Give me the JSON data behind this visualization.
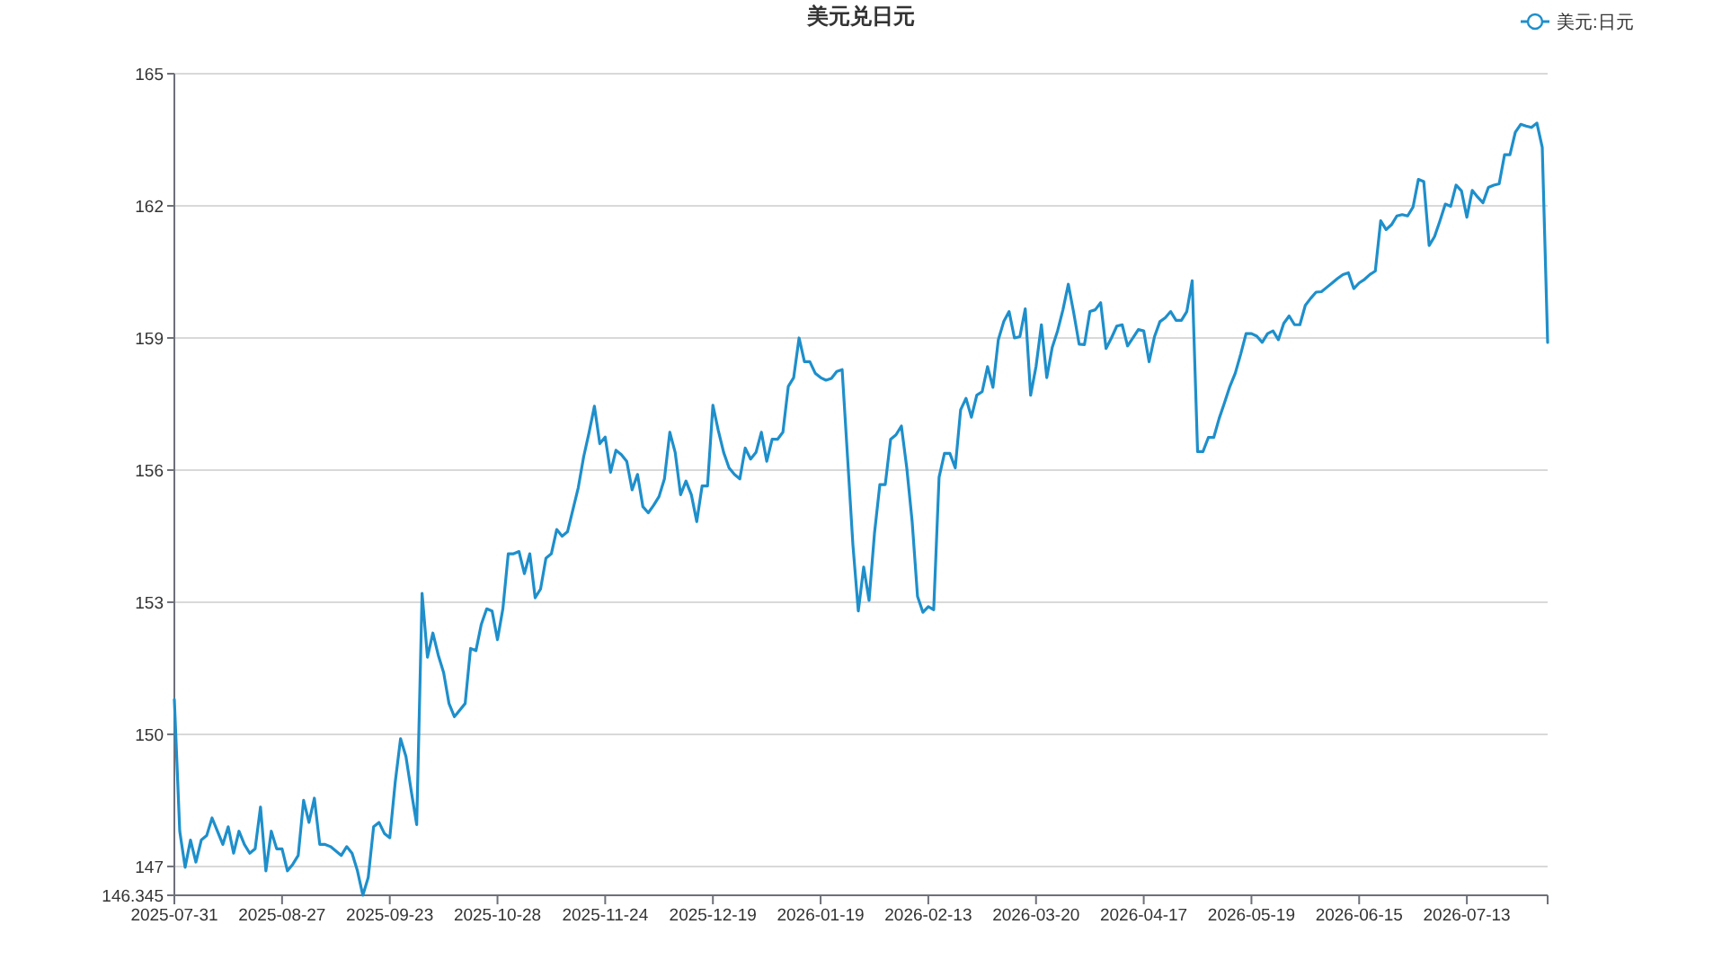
{
  "chart_data": {
    "type": "line",
    "title": "美元兑日元",
    "categories": [
      "2025-07-31",
      null,
      null,
      null,
      null,
      null,
      null,
      null,
      null,
      null,
      null,
      null,
      null,
      null,
      null,
      null,
      null,
      null,
      null,
      null,
      "2025-08-27",
      null,
      null,
      null,
      null,
      null,
      null,
      null,
      null,
      null,
      null,
      null,
      null,
      null,
      null,
      null,
      null,
      null,
      null,
      null,
      "2025-09-23",
      null,
      null,
      null,
      null,
      null,
      null,
      null,
      null,
      null,
      null,
      null,
      null,
      null,
      null,
      null,
      null,
      null,
      null,
      null,
      "2025-10-28",
      null,
      null,
      null,
      null,
      null,
      null,
      null,
      null,
      null,
      null,
      null,
      null,
      null,
      null,
      null,
      null,
      null,
      null,
      null,
      "2025-11-24",
      null,
      null,
      null,
      null,
      null,
      null,
      null,
      null,
      null,
      null,
      null,
      null,
      null,
      null,
      null,
      null,
      null,
      null,
      null,
      "2025-12-19",
      null,
      null,
      null,
      null,
      null,
      null,
      null,
      null,
      null,
      null,
      null,
      null,
      null,
      null,
      null,
      null,
      null,
      null,
      null,
      "2026-01-19",
      null,
      null,
      null,
      null,
      null,
      null,
      null,
      null,
      null,
      null,
      null,
      null,
      null,
      null,
      null,
      null,
      null,
      null,
      null,
      "2026-02-13",
      null,
      null,
      null,
      null,
      null,
      null,
      null,
      null,
      null,
      null,
      null,
      null,
      null,
      null,
      null,
      null,
      null,
      null,
      null,
      "2026-03-20",
      null,
      null,
      null,
      null,
      null,
      null,
      null,
      null,
      null,
      null,
      null,
      null,
      null,
      null,
      null,
      null,
      null,
      null,
      null,
      "2026-04-17",
      null,
      null,
      null,
      null,
      null,
      null,
      null,
      null,
      null,
      null,
      null,
      null,
      null,
      null,
      null,
      null,
      null,
      null,
      null,
      "2026-05-19",
      null,
      null,
      null,
      null,
      null,
      null,
      null,
      null,
      null,
      null,
      null,
      null,
      null,
      null,
      null,
      null,
      null,
      null,
      null,
      "2026-06-15",
      null,
      null,
      null,
      null,
      null,
      null,
      null,
      null,
      null,
      null,
      null,
      null,
      null,
      null,
      null,
      null,
      null,
      null,
      null,
      "2026-07-13",
      null,
      null,
      null,
      null,
      null,
      null,
      null,
      null,
      null,
      null,
      null,
      null,
      null,
      null,
      null
    ],
    "series": [
      {
        "name": "美元:日元",
        "color": "#1e8fcb",
        "values": [
          150.79,
          147.8,
          146.98,
          147.6,
          147.1,
          147.6,
          147.7,
          148.1,
          147.8,
          147.5,
          147.9,
          147.3,
          147.8,
          147.5,
          147.3,
          147.4,
          148.35,
          146.9,
          147.8,
          147.4,
          147.4,
          146.9,
          147.05,
          147.25,
          148.5,
          148.0,
          148.55,
          147.5,
          147.5,
          147.45,
          147.35,
          147.25,
          147.45,
          147.3,
          146.9,
          146.345,
          146.75,
          147.9,
          148.0,
          147.75,
          147.65,
          148.9,
          149.9,
          149.5,
          148.7,
          147.95,
          153.2,
          151.75,
          152.3,
          151.8,
          151.4,
          150.7,
          150.4,
          150.55,
          150.7,
          151.95,
          151.9,
          152.5,
          152.85,
          152.8,
          152.15,
          152.85,
          154.1,
          154.1,
          154.15,
          153.65,
          154.1,
          153.1,
          153.3,
          154.0,
          154.1,
          154.65,
          154.5,
          154.6,
          155.1,
          155.6,
          156.3,
          156.85,
          157.45,
          156.6,
          156.75,
          155.95,
          156.45,
          156.35,
          156.2,
          155.55,
          155.9,
          155.17,
          155.03,
          155.2,
          155.4,
          155.8,
          156.86,
          156.4,
          155.44,
          155.75,
          155.44,
          154.83,
          155.64,
          155.64,
          157.47,
          156.9,
          156.4,
          156.05,
          155.9,
          155.8,
          156.5,
          156.25,
          156.4,
          156.86,
          156.2,
          156.7,
          156.7,
          156.86,
          157.9,
          158.1,
          159.0,
          158.46,
          158.46,
          158.2,
          158.1,
          158.04,
          158.08,
          158.24,
          158.28,
          156.3,
          154.3,
          152.8,
          153.8,
          153.04,
          154.56,
          155.67,
          155.67,
          156.7,
          156.8,
          157.0,
          156.05,
          154.83,
          153.13,
          152.77,
          152.9,
          152.83,
          155.84,
          156.38,
          156.38,
          156.05,
          157.37,
          157.63,
          157.2,
          157.7,
          157.78,
          158.35,
          157.88,
          158.96,
          159.37,
          159.6,
          159.0,
          159.03,
          159.66,
          157.7,
          158.35,
          159.3,
          158.1,
          158.78,
          159.16,
          159.64,
          160.22,
          159.57,
          158.86,
          158.85,
          159.6,
          159.64,
          159.8,
          158.76,
          159.0,
          159.27,
          159.3,
          158.82,
          159.0,
          159.19,
          159.16,
          158.46,
          159.03,
          159.37,
          159.46,
          159.6,
          159.4,
          159.4,
          159.6,
          160.3,
          156.42,
          156.42,
          156.74,
          156.74,
          157.17,
          157.53,
          157.9,
          158.2,
          158.63,
          159.1,
          159.1,
          159.04,
          158.9,
          159.1,
          159.16,
          158.96,
          159.33,
          159.5,
          159.3,
          159.3,
          159.74,
          159.9,
          160.04,
          160.05,
          160.15,
          160.25,
          160.35,
          160.44,
          160.48,
          160.12,
          160.25,
          160.33,
          160.44,
          160.52,
          161.66,
          161.46,
          161.57,
          161.77,
          161.8,
          161.77,
          161.97,
          162.6,
          162.55,
          161.1,
          161.3,
          161.66,
          162.04,
          161.99,
          162.47,
          162.34,
          161.74,
          162.35,
          162.2,
          162.07,
          162.42,
          162.47,
          162.5,
          163.16,
          163.16,
          163.67,
          163.85,
          163.81,
          163.78,
          163.88,
          163.33,
          158.9
        ]
      }
    ],
    "ylim": [
      146.345,
      165
    ],
    "yticks": [
      146.345,
      147,
      150,
      153,
      156,
      159,
      162,
      165
    ],
    "grid": "y",
    "legend": "top right"
  }
}
